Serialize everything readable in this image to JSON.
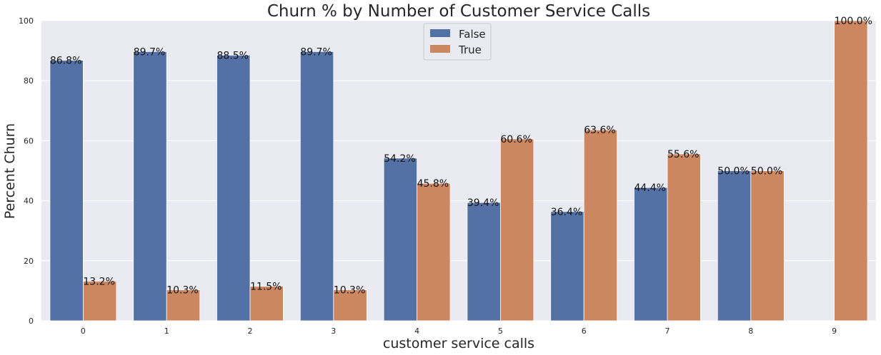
{
  "chart_data": {
    "type": "bar",
    "title": "Churn % by Number of Customer Service Calls",
    "xlabel": "customer service calls",
    "ylabel": "Percent Churn",
    "categories": [
      "0",
      "1",
      "2",
      "3",
      "4",
      "5",
      "6",
      "7",
      "8",
      "9"
    ],
    "series": [
      {
        "name": "False",
        "color": "#5471a6",
        "values": [
          86.8,
          89.7,
          88.5,
          89.7,
          54.2,
          39.4,
          36.4,
          44.4,
          50.0,
          null
        ],
        "labels": [
          "86.8%",
          "89.7%",
          "88.5%",
          "89.7%",
          "54.2%",
          "39.4%",
          "36.4%",
          "44.4%",
          "50.0%",
          ""
        ]
      },
      {
        "name": "True",
        "color": "#cc8760",
        "values": [
          13.2,
          10.3,
          11.5,
          10.3,
          45.8,
          60.6,
          63.6,
          55.6,
          50.0,
          100.0
        ],
        "labels": [
          "13.2%",
          "10.3%",
          "11.5%",
          "10.3%",
          "45.8%",
          "60.6%",
          "63.6%",
          "55.6%",
          "50.0%",
          "100.0%"
        ]
      }
    ],
    "yticks": [
      "0",
      "20",
      "40",
      "60",
      "80",
      "100"
    ],
    "ylim": [
      0,
      100
    ],
    "grid": true,
    "legend_position": "top-center",
    "background_color": "#eaeaf2"
  }
}
